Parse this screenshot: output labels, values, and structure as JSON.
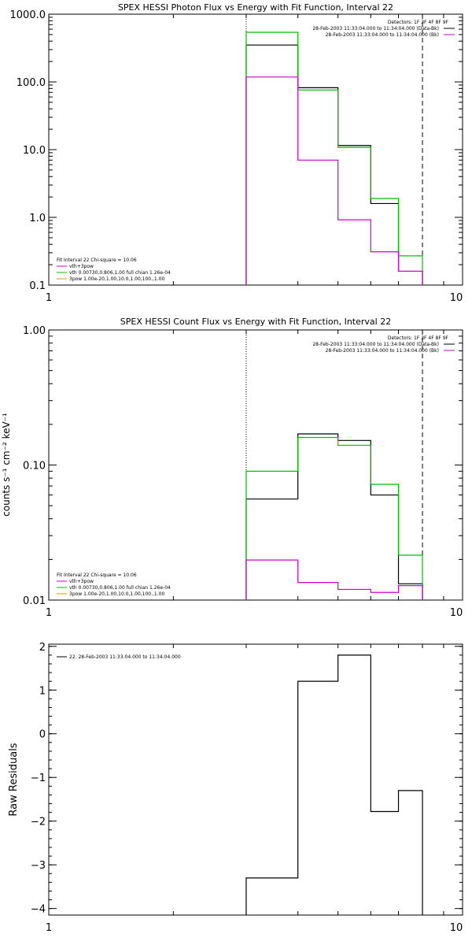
{
  "chart_data": [
    {
      "type": "line",
      "step": true,
      "title": "SPEX HESSI Photon Flux vs Energy with Fit Function, Interval 22",
      "xscale": "log",
      "yscale": "log",
      "xlim": [
        1,
        10
      ],
      "ylim": [
        0.1,
        1000
      ],
      "xticks": [
        {
          "v": 1,
          "label": "1"
        },
        {
          "v": 10,
          "label": "10"
        }
      ],
      "yticks": [
        {
          "v": 0.1,
          "label": "0.1"
        },
        {
          "v": 1,
          "label": "1.0"
        },
        {
          "v": 10,
          "label": "10.0"
        },
        {
          "v": 100,
          "label": "100.0"
        },
        {
          "v": 1000,
          "label": "1000.0"
        }
      ],
      "ylabel": "",
      "vlines": [
        {
          "x": 3.0,
          "style": "dotted"
        },
        {
          "x": 8.0,
          "style": "dashed"
        }
      ],
      "legend_top": [
        "Detectors: 1F 3F 4F 8F 9F",
        "28-Feb-2003 11:33:04.000 to 11:34:04.000 (Data-Bk)",
        "28-Feb-2003 11:33:04.000 to 11:34:04.000 (Bk)"
      ],
      "legend_bottom": [
        "Fit Interval 22   Chi-square = 10.06",
        "vth+3pow",
        "vth 0.00730,0.806,1.00  full chian 1.26e-04",
        "3pow 1.00e-20,1.00,10.0,1.00,100.,1.00"
      ],
      "edges": [
        3.0,
        4.0,
        5.0,
        6.0,
        7.0,
        8.0
      ],
      "series": [
        {
          "color": "#000000",
          "values": [
            350,
            82,
            11.5,
            1.6,
            0.16
          ]
        },
        {
          "color": "#00c000",
          "values": [
            540,
            76,
            10.8,
            1.9,
            0.27
          ]
        },
        {
          "color": "#d000d0",
          "values": [
            118,
            7.0,
            0.92,
            0.31,
            0.16
          ]
        }
      ]
    },
    {
      "type": "line",
      "step": true,
      "title": "SPEX HESSI Count Flux vs Energy with Fit Function, Interval 22",
      "xscale": "log",
      "yscale": "log",
      "xlim": [
        1,
        10
      ],
      "ylim": [
        0.01,
        1.0
      ],
      "xticks": [
        {
          "v": 1,
          "label": "1"
        },
        {
          "v": 10,
          "label": "10"
        }
      ],
      "yticks": [
        {
          "v": 0.01,
          "label": "0.01"
        },
        {
          "v": 0.1,
          "label": "0.10"
        },
        {
          "v": 1,
          "label": "1.00"
        }
      ],
      "ylabel": "counts s⁻¹ cm⁻² keV⁻¹",
      "vlines": [
        {
          "x": 3.0,
          "style": "dotted"
        },
        {
          "x": 8.0,
          "style": "dashed"
        }
      ],
      "legend_top": [
        "Detectors: 1F 3F 4F 8F 9F",
        "28-Feb-2003 11:33:04.000 to 11:34:04.000 (Data-Bk)",
        "28-Feb-2003 11:33:04.000 to 11:34:04.000 (Bk)"
      ],
      "legend_bottom": [
        "Fit Interval 22   Chi-square = 10.06",
        "vth+3pow",
        "vth 0.00730,0.806,1.00  full chian 1.26e-04",
        "3pow 1.00e-20,1.00,10.0,1.00,100.,1.00"
      ],
      "edges": [
        3.0,
        4.0,
        5.0,
        6.0,
        7.0,
        8.0
      ],
      "series": [
        {
          "color": "#000000",
          "values": [
            0.056,
            0.17,
            0.152,
            0.06,
            0.0132
          ]
        },
        {
          "color": "#00c000",
          "values": [
            0.09,
            0.16,
            0.14,
            0.072,
            0.0215
          ]
        },
        {
          "color": "#d000d0",
          "values": [
            0.0198,
            0.0135,
            0.012,
            0.0114,
            0.0128
          ]
        }
      ]
    },
    {
      "type": "line",
      "step": true,
      "title": "",
      "xscale": "log",
      "yscale": "linear",
      "xlim": [
        1,
        10
      ],
      "ylim": [
        -4.15,
        2.05
      ],
      "xticks": [
        {
          "v": 1,
          "label": "1"
        },
        {
          "v": 10,
          "label": "10"
        }
      ],
      "yticks": [
        {
          "v": -4,
          "label": "−4"
        },
        {
          "v": -3,
          "label": "−3"
        },
        {
          "v": -2,
          "label": "−2"
        },
        {
          "v": -1,
          "label": "−1"
        },
        {
          "v": 0,
          "label": "0"
        },
        {
          "v": 1,
          "label": "1"
        },
        {
          "v": 2,
          "label": "2"
        }
      ],
      "ylabel": "Raw Residuals",
      "vlines": [],
      "legend_top": [
        "22. 28-Feb-2003 11:33:04.000 to 11:34:04.000"
      ],
      "legend_bottom": [],
      "edges": [
        3.0,
        4.0,
        5.0,
        6.0,
        7.0,
        8.0
      ],
      "series": [
        {
          "color": "#000000",
          "values": [
            -3.3,
            1.2,
            1.8,
            -1.78,
            -1.3
          ]
        }
      ]
    }
  ]
}
